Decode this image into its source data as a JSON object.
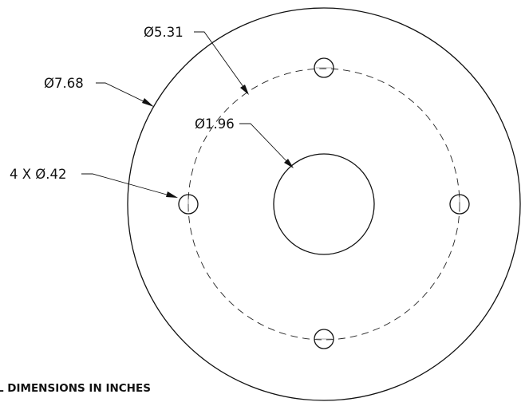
{
  "drawing": {
    "outer_diameter_label": "Ø7.68",
    "bolt_circle_label": "Ø5.31",
    "center_hole_label": "Ø1.96",
    "bolt_holes_label": "4 X Ø.42",
    "note": "L DIMENSIONS IN INCHES"
  }
}
